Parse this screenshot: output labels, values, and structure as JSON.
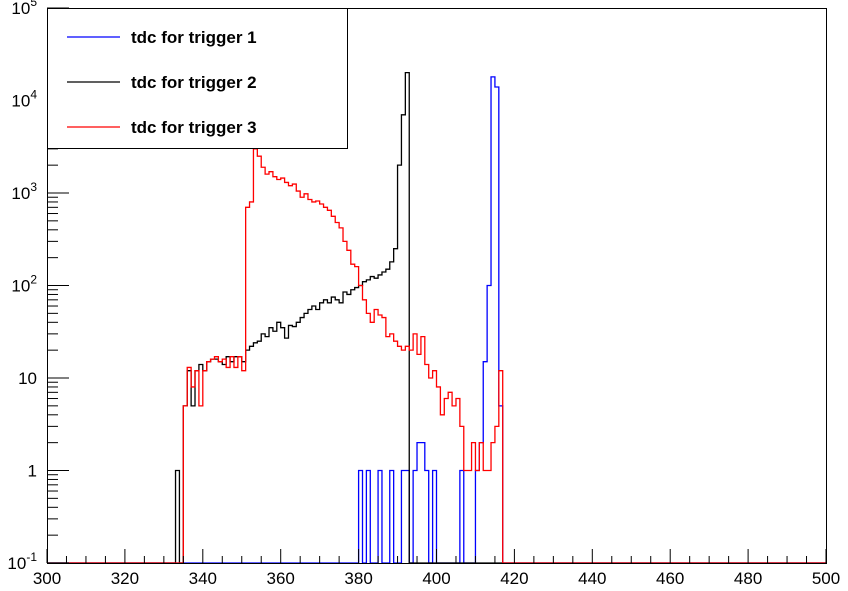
{
  "chart_data": {
    "type": "histogram",
    "title": "",
    "xlabel": "",
    "ylabel": "",
    "xlim": [
      300,
      500
    ],
    "ylim": [
      0.1,
      100000
    ],
    "yscale": "log",
    "bin_width": 1,
    "grid": false,
    "legend_position": "top-left",
    "x_tick_labels": [
      "300",
      "320",
      "340",
      "360",
      "380",
      "400",
      "420",
      "440",
      "460",
      "480",
      "500"
    ],
    "y_tick_labels": [
      {
        "base": "10",
        "exp": "-1",
        "value": 0.1
      },
      {
        "base": "1",
        "exp": "",
        "value": 1
      },
      {
        "base": "10",
        "exp": "",
        "value": 10
      },
      {
        "base": "10",
        "exp": "2",
        "value": 100
      },
      {
        "base": "10",
        "exp": "3",
        "value": 1000
      },
      {
        "base": "10",
        "exp": "4",
        "value": 10000
      },
      {
        "base": "10",
        "exp": "5",
        "value": 100000
      }
    ],
    "series": [
      {
        "name": "tdc for trigger 1",
        "color": "#0000ff",
        "bins": [
          [
            380,
            1
          ],
          [
            382,
            1
          ],
          [
            385,
            1
          ],
          [
            388,
            1
          ],
          [
            391,
            1
          ],
          [
            392,
            1
          ],
          [
            394,
            1
          ],
          [
            395,
            2
          ],
          [
            396,
            2
          ],
          [
            397,
            1
          ],
          [
            399,
            1
          ],
          [
            406,
            1
          ],
          [
            410,
            1
          ],
          [
            411,
            2
          ],
          [
            412,
            15
          ],
          [
            413,
            100
          ],
          [
            414,
            18000
          ],
          [
            415,
            14000
          ],
          [
            416,
            5
          ]
        ]
      },
      {
        "name": "tdc for trigger 2",
        "color": "#000000",
        "bins": [
          [
            333,
            1
          ],
          [
            335,
            5
          ],
          [
            336,
            12
          ],
          [
            337,
            5
          ],
          [
            338,
            12
          ],
          [
            339,
            14
          ],
          [
            340,
            12
          ],
          [
            341,
            15
          ],
          [
            342,
            16
          ],
          [
            343,
            16
          ],
          [
            344,
            15
          ],
          [
            345,
            14
          ],
          [
            346,
            17
          ],
          [
            347,
            15
          ],
          [
            348,
            17
          ],
          [
            349,
            17
          ],
          [
            350,
            15
          ],
          [
            351,
            20
          ],
          [
            352,
            22
          ],
          [
            353,
            24
          ],
          [
            354,
            25
          ],
          [
            355,
            30
          ],
          [
            356,
            28
          ],
          [
            357,
            35
          ],
          [
            358,
            32
          ],
          [
            359,
            40
          ],
          [
            360,
            35
          ],
          [
            361,
            27
          ],
          [
            362,
            37
          ],
          [
            363,
            36
          ],
          [
            364,
            40
          ],
          [
            365,
            45
          ],
          [
            366,
            50
          ],
          [
            367,
            55
          ],
          [
            368,
            60
          ],
          [
            369,
            55
          ],
          [
            370,
            65
          ],
          [
            371,
            70
          ],
          [
            372,
            65
          ],
          [
            373,
            75
          ],
          [
            374,
            70
          ],
          [
            375,
            65
          ],
          [
            376,
            85
          ],
          [
            377,
            80
          ],
          [
            378,
            90
          ],
          [
            379,
            95
          ],
          [
            380,
            100
          ],
          [
            381,
            110
          ],
          [
            382,
            115
          ],
          [
            383,
            125
          ],
          [
            384,
            120
          ],
          [
            385,
            130
          ],
          [
            386,
            140
          ],
          [
            387,
            150
          ],
          [
            388,
            180
          ],
          [
            389,
            250
          ],
          [
            390,
            2000
          ],
          [
            391,
            7000
          ],
          [
            392,
            20000
          ]
        ]
      },
      {
        "name": "tdc for trigger 3",
        "color": "#ff0000",
        "bins": [
          [
            335,
            5
          ],
          [
            336,
            13
          ],
          [
            337,
            8
          ],
          [
            338,
            12
          ],
          [
            339,
            5
          ],
          [
            340,
            12
          ],
          [
            341,
            15
          ],
          [
            342,
            16
          ],
          [
            343,
            17
          ],
          [
            344,
            15
          ],
          [
            345,
            16
          ],
          [
            346,
            13
          ],
          [
            347,
            17
          ],
          [
            348,
            13
          ],
          [
            349,
            17
          ],
          [
            350,
            12
          ],
          [
            351,
            700
          ],
          [
            352,
            800
          ],
          [
            353,
            3000
          ],
          [
            354,
            2500
          ],
          [
            355,
            1900
          ],
          [
            356,
            1600
          ],
          [
            357,
            1700
          ],
          [
            358,
            1500
          ],
          [
            359,
            1400
          ],
          [
            360,
            1450
          ],
          [
            361,
            1300
          ],
          [
            362,
            1200
          ],
          [
            363,
            1250
          ],
          [
            364,
            1050
          ],
          [
            365,
            900
          ],
          [
            366,
            980
          ],
          [
            367,
            850
          ],
          [
            368,
            800
          ],
          [
            369,
            820
          ],
          [
            370,
            760
          ],
          [
            371,
            700
          ],
          [
            372,
            650
          ],
          [
            373,
            560
          ],
          [
            374,
            480
          ],
          [
            375,
            420
          ],
          [
            376,
            300
          ],
          [
            377,
            240
          ],
          [
            378,
            170
          ],
          [
            379,
            160
          ],
          [
            380,
            100
          ],
          [
            381,
            70
          ],
          [
            382,
            50
          ],
          [
            383,
            40
          ],
          [
            384,
            55
          ],
          [
            385,
            48
          ],
          [
            386,
            45
          ],
          [
            387,
            28
          ],
          [
            388,
            30
          ],
          [
            389,
            25
          ],
          [
            390,
            22
          ],
          [
            391,
            20
          ],
          [
            392,
            22
          ],
          [
            393,
            20
          ],
          [
            394,
            30
          ],
          [
            395,
            18
          ],
          [
            396,
            28
          ],
          [
            397,
            14
          ],
          [
            398,
            10
          ],
          [
            399,
            12
          ],
          [
            400,
            8
          ],
          [
            401,
            4
          ],
          [
            402,
            6
          ],
          [
            403,
            7
          ],
          [
            404,
            5
          ],
          [
            405,
            6
          ],
          [
            406,
            3
          ],
          [
            407,
            1
          ],
          [
            408,
            1
          ],
          [
            409,
            2
          ],
          [
            410,
            1
          ],
          [
            411,
            2
          ],
          [
            412,
            1
          ],
          [
            413,
            1
          ],
          [
            414,
            2
          ],
          [
            415,
            3
          ],
          [
            416,
            12
          ]
        ]
      }
    ]
  }
}
